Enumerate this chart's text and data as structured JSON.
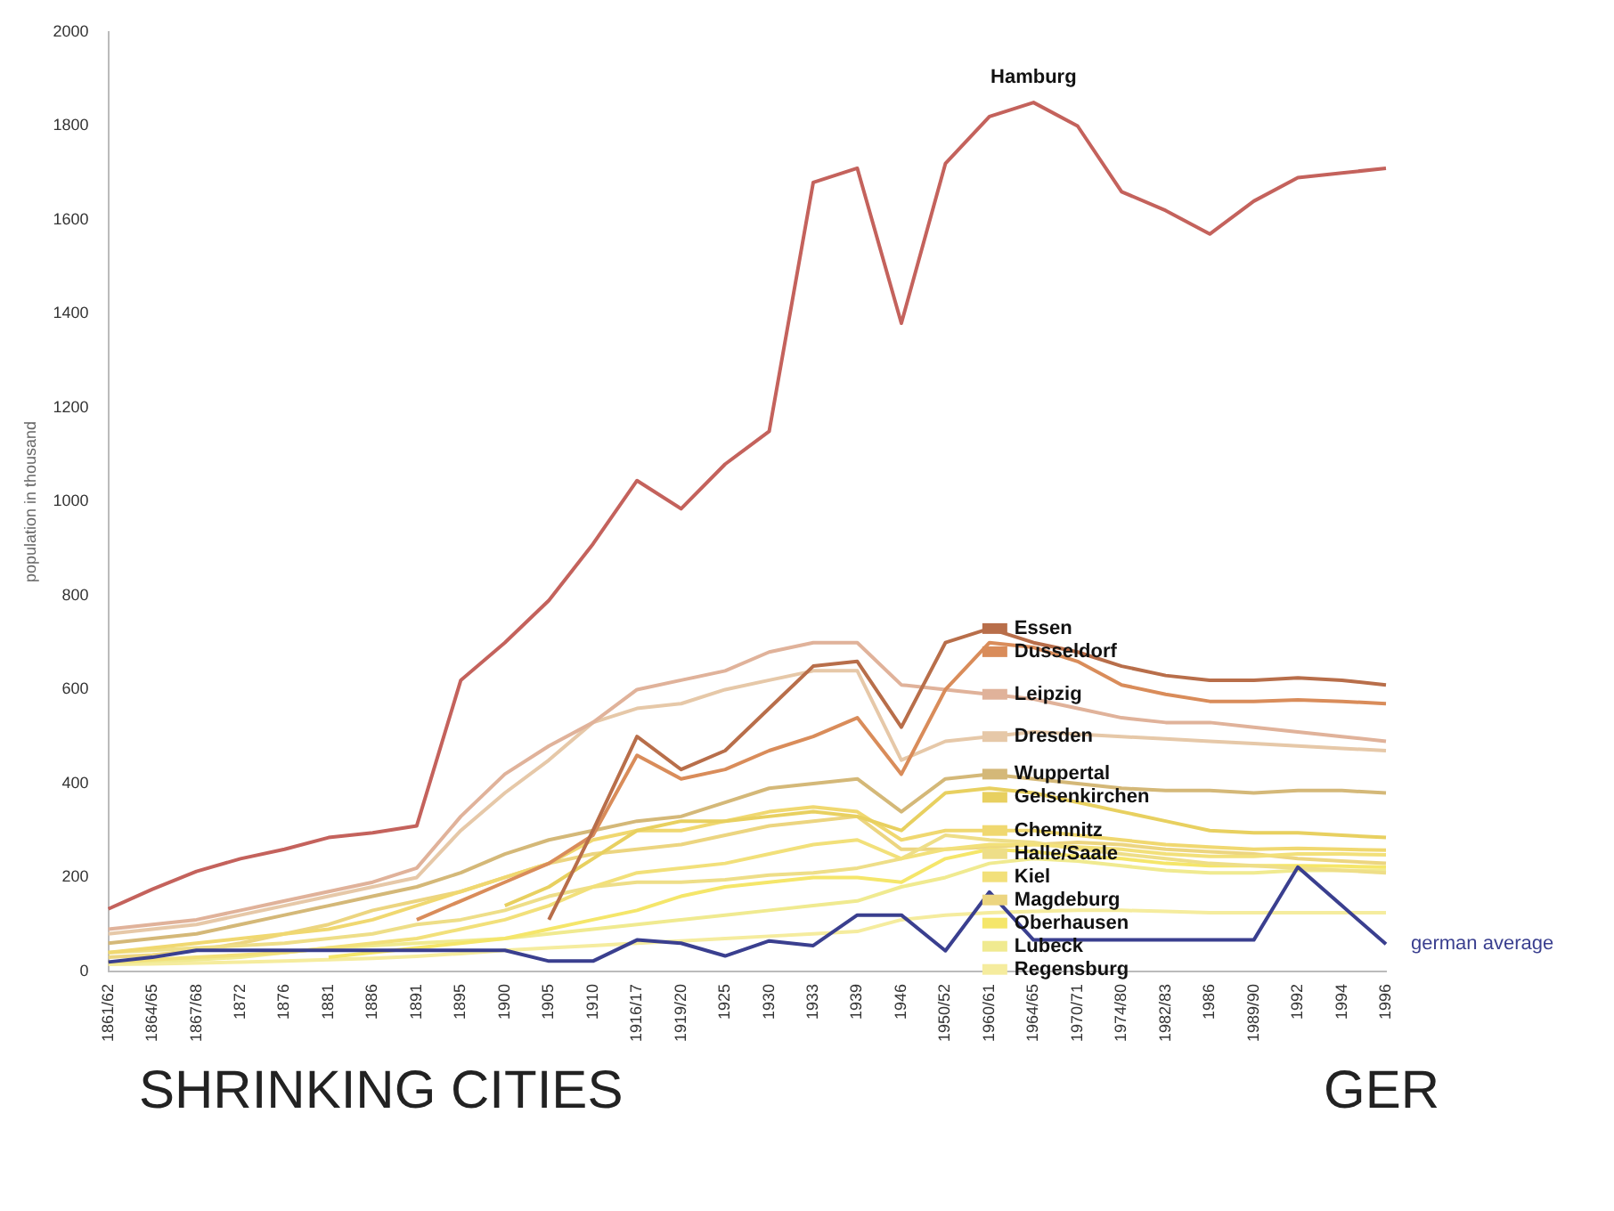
{
  "chart_data": {
    "type": "line",
    "title": "SHRINKING CITIES",
    "annotations": [
      "GER"
    ],
    "ylabel": "population in thousand",
    "categories": [
      "1861/62",
      "1864/65",
      "1867/68",
      "1872",
      "1876",
      "1881",
      "1886",
      "1891",
      "1895",
      "1900",
      "1905",
      "1910",
      "1916/17",
      "1919/20",
      "1925",
      "1930",
      "1933",
      "1939",
      "1946",
      "1950/52",
      "1960/61",
      "1964/65",
      "1970/71",
      "1974/80",
      "1982/83",
      "1986",
      "1989/90",
      "1992",
      "1994",
      "1996"
    ],
    "ylim": [
      0,
      2000
    ],
    "yticks": [
      0,
      200,
      400,
      600,
      800,
      1000,
      1200,
      1400,
      1600,
      1800,
      2000
    ],
    "grid": false,
    "legend": "bottom right",
    "marker": "none",
    "line_style": "solid",
    "series": [
      {
        "name": "Hamburg",
        "color": "#c4625c",
        "values": [
          133,
          175,
          213,
          240,
          260,
          285,
          295,
          310,
          620,
          700,
          790,
          910,
          1045,
          985,
          1080,
          1150,
          1680,
          1710,
          1380,
          1720,
          1820,
          1850,
          1800,
          1660,
          1620,
          1570,
          1640,
          1690,
          1700,
          1710
        ]
      },
      {
        "name": "Essen",
        "color": "#b86e4a",
        "values": [
          null,
          null,
          null,
          null,
          null,
          null,
          null,
          null,
          null,
          null,
          110,
          300,
          500,
          430,
          470,
          560,
          650,
          660,
          520,
          700,
          730,
          700,
          680,
          650,
          630,
          620,
          620,
          625,
          620,
          610
        ]
      },
      {
        "name": "Dusseldorf",
        "color": "#d98c5a",
        "values": [
          null,
          null,
          null,
          null,
          null,
          null,
          null,
          110,
          150,
          190,
          230,
          290,
          460,
          410,
          430,
          470,
          500,
          540,
          420,
          600,
          700,
          690,
          660,
          610,
          590,
          575,
          575,
          578,
          575,
          570
        ]
      },
      {
        "name": "Leipzig",
        "color": "#e0b29a",
        "values": [
          90,
          100,
          110,
          130,
          150,
          170,
          190,
          220,
          330,
          420,
          480,
          530,
          600,
          620,
          640,
          680,
          700,
          700,
          610,
          600,
          590,
          580,
          560,
          540,
          530,
          530,
          520,
          510,
          500,
          490
        ]
      },
      {
        "name": "Dresden",
        "color": "#e6c8a8",
        "values": [
          80,
          90,
          100,
          120,
          140,
          160,
          180,
          200,
          300,
          380,
          450,
          530,
          560,
          570,
          600,
          620,
          640,
          640,
          450,
          490,
          500,
          510,
          505,
          500,
          495,
          490,
          485,
          480,
          475,
          470
        ]
      },
      {
        "name": "Wuppertal",
        "color": "#d4b878",
        "values": [
          60,
          70,
          80,
          100,
          120,
          140,
          160,
          180,
          210,
          250,
          280,
          300,
          320,
          330,
          360,
          390,
          400,
          410,
          340,
          410,
          420,
          410,
          400,
          390,
          385,
          385,
          380,
          385,
          385,
          380
        ]
      },
      {
        "name": "Gelsenkirchen",
        "color": "#e8d060",
        "values": [
          null,
          null,
          null,
          null,
          null,
          null,
          null,
          null,
          null,
          140,
          180,
          240,
          300,
          320,
          320,
          330,
          340,
          330,
          300,
          380,
          390,
          380,
          360,
          340,
          320,
          300,
          295,
          295,
          290,
          285
        ]
      },
      {
        "name": "Chemnitz",
        "color": "#f0d870",
        "values": [
          40,
          50,
          60,
          70,
          80,
          90,
          110,
          140,
          170,
          200,
          230,
          280,
          300,
          300,
          320,
          340,
          350,
          340,
          280,
          300,
          300,
          300,
          290,
          280,
          270,
          265,
          260,
          262,
          260,
          258
        ]
      },
      {
        "name": "Kiel",
        "color": "#f2e07a",
        "values": [
          20,
          25,
          30,
          35,
          40,
          50,
          60,
          70,
          90,
          110,
          140,
          180,
          210,
          220,
          230,
          250,
          270,
          280,
          240,
          260,
          270,
          270,
          265,
          260,
          250,
          245,
          245,
          250,
          250,
          248
        ]
      },
      {
        "name": "Halle/Saale",
        "color": "#eede88",
        "values": [
          40,
          45,
          50,
          55,
          60,
          70,
          80,
          100,
          110,
          130,
          160,
          180,
          190,
          190,
          195,
          205,
          210,
          220,
          240,
          290,
          280,
          275,
          260,
          250,
          240,
          230,
          225,
          220,
          215,
          210
        ]
      },
      {
        "name": "Oberhausen",
        "color": "#f5e66a",
        "values": [
          null,
          null,
          null,
          null,
          null,
          30,
          40,
          50,
          60,
          70,
          90,
          110,
          130,
          160,
          180,
          190,
          200,
          200,
          190,
          240,
          260,
          255,
          245,
          240,
          230,
          225,
          225,
          225,
          224,
          222
        ]
      },
      {
        "name": "Magdeburg",
        "color": "#ecd580",
        "values": [
          30,
          35,
          45,
          60,
          80,
          100,
          130,
          150,
          170,
          200,
          230,
          250,
          260,
          270,
          290,
          310,
          320,
          330,
          260,
          260,
          265,
          270,
          275,
          270,
          260,
          255,
          250,
          240,
          235,
          230
        ]
      },
      {
        "name": "Lubeck",
        "color": "#f0ea90",
        "values": [
          20,
          22,
          25,
          30,
          40,
          50,
          55,
          60,
          65,
          70,
          80,
          90,
          100,
          110,
          120,
          130,
          140,
          150,
          180,
          200,
          230,
          240,
          235,
          225,
          215,
          210,
          210,
          215,
          215,
          215
        ]
      },
      {
        "name": "Regensburg",
        "color": "#f5ec9e",
        "values": [
          15,
          16,
          18,
          20,
          22,
          25,
          28,
          32,
          38,
          45,
          50,
          55,
          60,
          65,
          70,
          75,
          80,
          85,
          110,
          120,
          125,
          128,
          130,
          130,
          128,
          125,
          125,
          125,
          125,
          125
        ]
      },
      {
        "name": "german average",
        "color": "#3a3f8f",
        "values": [
          20,
          30,
          45,
          45,
          45,
          45,
          45,
          45,
          45,
          45,
          22,
          22,
          67,
          60,
          33,
          65,
          55,
          120,
          120,
          44,
          169,
          67,
          67,
          67,
          67,
          67,
          67,
          222,
          140,
          58
        ]
      }
    ]
  }
}
